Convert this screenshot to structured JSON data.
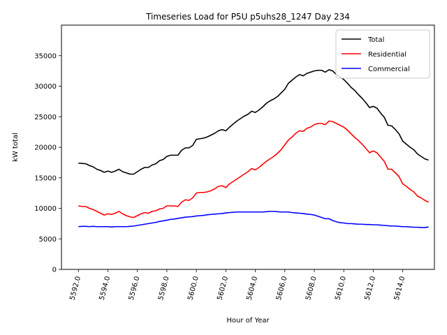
{
  "chart_data": {
    "type": "line",
    "title": "Timeseries Load for P5U p5uhs28_1247  Day 234",
    "xlabel": "Hour of Year",
    "ylabel": "kW total",
    "xlim": [
      5590.85,
      5616.15
    ],
    "ylim": [
      0,
      40000
    ],
    "xticks": [
      5592.0,
      5594.0,
      5596.0,
      5598.0,
      5600.0,
      5602.0,
      5604.0,
      5606.0,
      5608.0,
      5610.0,
      5612.0,
      5614.0
    ],
    "xtick_labels": [
      "5592.0",
      "5594.0",
      "5596.0",
      "5598.0",
      "5600.0",
      "5602.0",
      "5604.0",
      "5606.0",
      "5608.0",
      "5610.0",
      "5612.0",
      "5614.0"
    ],
    "yticks": [
      0,
      5000,
      10000,
      15000,
      20000,
      25000,
      30000,
      35000
    ],
    "ytick_labels": [
      "0",
      "5000",
      "10000",
      "15000",
      "20000",
      "25000",
      "30000",
      "35000"
    ],
    "legend_position": "top-right",
    "x": [
      5592.0,
      5592.25,
      5592.5,
      5592.75,
      5593.0,
      5593.25,
      5593.5,
      5593.75,
      5594.0,
      5594.25,
      5594.5,
      5594.75,
      5595.0,
      5595.25,
      5595.5,
      5595.75,
      5596.0,
      5596.25,
      5596.5,
      5596.75,
      5597.0,
      5597.25,
      5597.5,
      5597.75,
      5598.0,
      5598.25,
      5598.5,
      5598.75,
      5599.0,
      5599.25,
      5599.5,
      5599.75,
      5600.0,
      5600.25,
      5600.5,
      5600.75,
      5601.0,
      5601.25,
      5601.5,
      5601.75,
      5602.0,
      5602.25,
      5602.5,
      5602.75,
      5603.0,
      5603.25,
      5603.5,
      5603.75,
      5604.0,
      5604.25,
      5604.5,
      5604.75,
      5605.0,
      5605.25,
      5605.5,
      5605.75,
      5606.0,
      5606.25,
      5606.5,
      5606.75,
      5607.0,
      5607.25,
      5607.5,
      5607.75,
      5608.0,
      5608.25,
      5608.5,
      5608.75,
      5609.0,
      5609.25,
      5609.5,
      5609.75,
      5610.0,
      5610.25,
      5610.5,
      5610.75,
      5611.0,
      5611.25,
      5611.5,
      5611.75,
      5612.0,
      5612.25,
      5612.5,
      5612.75,
      5613.0,
      5613.25,
      5613.5,
      5613.75,
      5614.0,
      5614.25,
      5614.5,
      5614.75,
      5615.0,
      5615.25,
      5615.5,
      5615.75
    ],
    "series": [
      {
        "name": "Total",
        "color": "#000000",
        "values": [
          17400,
          17350,
          17300,
          17000,
          16800,
          16400,
          16200,
          15900,
          16100,
          15900,
          16100,
          16400,
          16000,
          15800,
          15600,
          15600,
          16000,
          16400,
          16700,
          16700,
          17100,
          17300,
          17800,
          18000,
          18500,
          18700,
          18700,
          18700,
          19500,
          19900,
          19900,
          20300,
          21300,
          21400,
          21500,
          21700,
          22000,
          22300,
          22700,
          22900,
          22700,
          23300,
          23800,
          24300,
          24700,
          25100,
          25400,
          25900,
          25700,
          26100,
          26600,
          27200,
          27600,
          27900,
          28300,
          28900,
          29500,
          30500,
          31000,
          31500,
          31900,
          31700,
          32100,
          32300,
          32500,
          32600,
          32600,
          32300,
          32700,
          32500,
          31900,
          31500,
          31100,
          30500,
          29800,
          29300,
          28600,
          28000,
          27300,
          26500,
          26700,
          26400,
          25600,
          24900,
          23600,
          23500,
          22900,
          22200,
          21000,
          20500,
          20000,
          19600,
          18900,
          18500,
          18100,
          17900
        ]
      },
      {
        "name": "Residential",
        "color": "#ff0000",
        "values": [
          10400,
          10300,
          10300,
          10000,
          9800,
          9500,
          9200,
          8900,
          9100,
          9000,
          9200,
          9500,
          9100,
          8800,
          8600,
          8500,
          8800,
          9100,
          9300,
          9200,
          9500,
          9600,
          9900,
          10000,
          10400,
          10400,
          10400,
          10300,
          11000,
          11400,
          11300,
          11700,
          12500,
          12600,
          12600,
          12700,
          12900,
          13200,
          13600,
          13700,
          13400,
          14000,
          14400,
          14800,
          15200,
          15600,
          16000,
          16500,
          16300,
          16700,
          17200,
          17700,
          18100,
          18500,
          19000,
          19600,
          20400,
          21200,
          21700,
          22300,
          22700,
          22600,
          23100,
          23300,
          23700,
          23900,
          23900,
          23700,
          24300,
          24200,
          23900,
          23600,
          23300,
          22800,
          22200,
          21600,
          21100,
          20500,
          19800,
          19100,
          19400,
          19100,
          18400,
          17700,
          16400,
          16400,
          15800,
          15200,
          14000,
          13600,
          13100,
          12700,
          12000,
          11700,
          11300,
          11000
        ]
      },
      {
        "name": "Commercial",
        "color": "#0000ff",
        "values": [
          7000,
          7050,
          7050,
          7000,
          7050,
          7000,
          7000,
          7000,
          7000,
          6950,
          7000,
          7000,
          7000,
          7000,
          7050,
          7100,
          7200,
          7300,
          7400,
          7500,
          7600,
          7700,
          7850,
          7950,
          8050,
          8200,
          8250,
          8350,
          8450,
          8550,
          8600,
          8650,
          8750,
          8800,
          8850,
          8950,
          9000,
          9050,
          9100,
          9150,
          9250,
          9300,
          9350,
          9400,
          9400,
          9400,
          9400,
          9400,
          9400,
          9400,
          9400,
          9450,
          9500,
          9500,
          9450,
          9400,
          9400,
          9400,
          9300,
          9250,
          9200,
          9150,
          9050,
          9000,
          8900,
          8700,
          8500,
          8300,
          8300,
          8000,
          7800,
          7650,
          7600,
          7500,
          7500,
          7450,
          7400,
          7400,
          7350,
          7350,
          7300,
          7300,
          7250,
          7200,
          7150,
          7100,
          7100,
          7050,
          7000,
          7000,
          6950,
          6900,
          6900,
          6850,
          6850,
          6950
        ]
      }
    ]
  }
}
